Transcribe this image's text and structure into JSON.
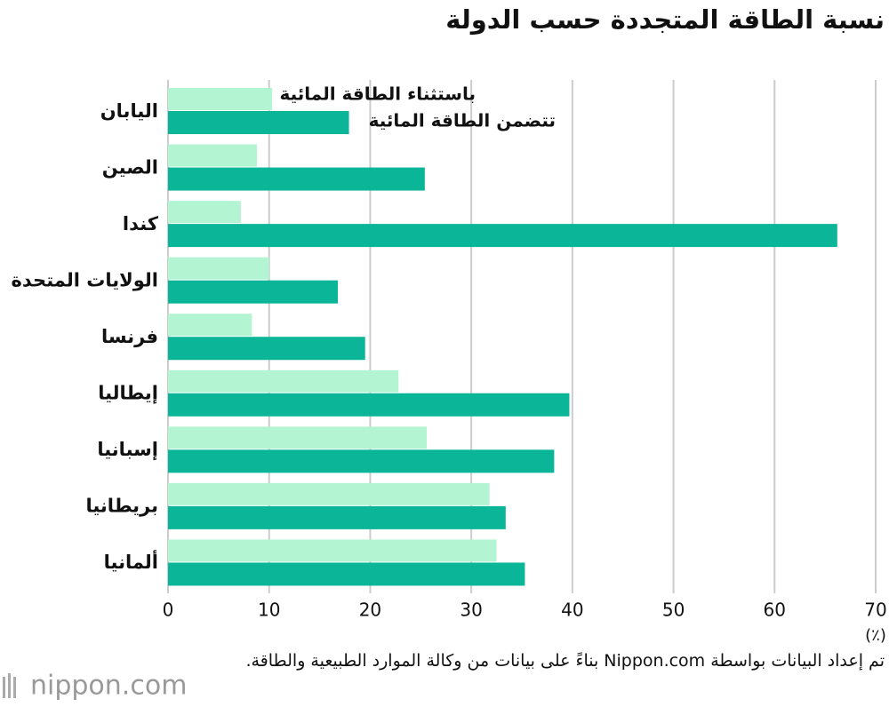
{
  "chart_data": {
    "type": "bar",
    "orientation": "horizontal",
    "title": "نسبة الطاقة المتجددة حسب الدولة",
    "categories": [
      "اليابان",
      "الصين",
      "كندا",
      "الولايات المتحدة",
      "فرنسا",
      "إيطاليا",
      "إسبانيا",
      "بريطانيا",
      "ألمانيا"
    ],
    "series": [
      {
        "name": "باستثناء الطاقة المائية",
        "color": "#b3f5d3",
        "values": [
          10.3,
          8.8,
          7.2,
          10.0,
          8.3,
          22.8,
          25.6,
          31.8,
          32.5
        ]
      },
      {
        "name": "تتضمن الطاقة المائية",
        "color": "#0bb597",
        "values": [
          17.9,
          25.4,
          66.2,
          16.8,
          19.5,
          39.7,
          38.2,
          33.4,
          35.3
        ]
      }
    ],
    "xlim": [
      0,
      70
    ],
    "xticks": [
      0,
      10,
      20,
      30,
      40,
      50,
      60,
      70
    ],
    "grid": true,
    "xlabel": "(٪)",
    "source": "تم إعداد البيانات بواسطة Nippon.com بناءً على بيانات من وكالة الموارد الطبيعية والطاقة.",
    "logo": "nippon.com"
  }
}
